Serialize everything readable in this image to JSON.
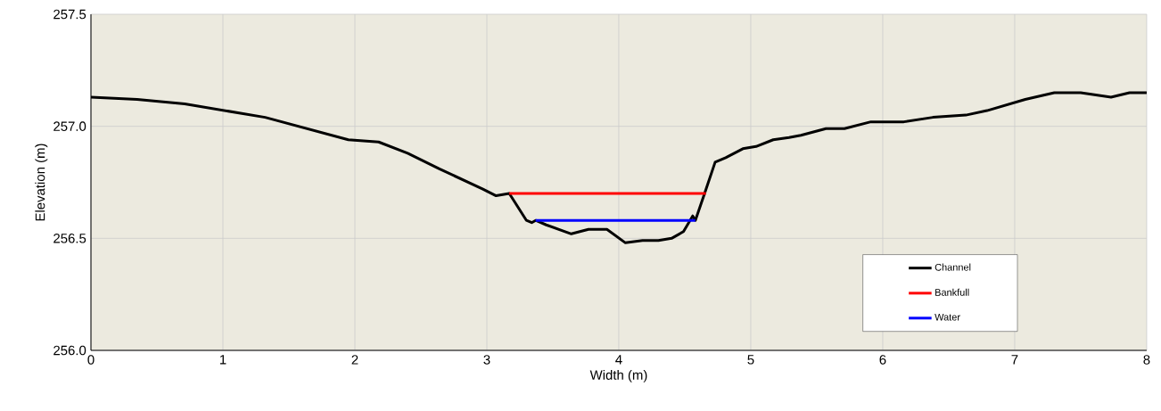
{
  "chart_data": {
    "type": "line",
    "xlabel": "Width (m)",
    "ylabel": "Elevation (m)",
    "xlim": [
      0,
      8
    ],
    "ylim": [
      256.0,
      257.5
    ],
    "xticks": [
      0,
      1,
      2,
      3,
      4,
      5,
      6,
      7,
      8
    ],
    "yticks": [
      {
        "value": 256.0,
        "label": "256.0"
      },
      {
        "value": 256.5,
        "label": "256.5"
      },
      {
        "value": 257.0,
        "label": "257.0"
      },
      {
        "value": 257.5,
        "label": "257.5"
      }
    ],
    "grid": true,
    "legend": "bottom right",
    "series": [
      {
        "name": "Channel",
        "color": "#000000",
        "x": [
          0,
          0.35,
          0.71,
          1.32,
          1.95,
          2.18,
          2.4,
          2.64,
          2.97,
          3.07,
          3.17,
          3.3,
          3.34,
          3.37,
          3.45,
          3.64,
          3.77,
          3.91,
          4.05,
          4.18,
          4.3,
          4.4,
          4.49,
          4.56,
          4.58,
          4.65,
          4.73,
          4.81,
          4.94,
          5.04,
          5.17,
          5.29,
          5.38,
          5.57,
          5.71,
          5.91,
          6.16,
          6.38,
          6.63,
          6.79,
          7.08,
          7.3,
          7.5,
          7.73,
          7.87,
          8
        ],
        "values": [
          257.13,
          257.12,
          257.1,
          257.04,
          256.94,
          256.93,
          256.88,
          256.81,
          256.72,
          256.69,
          256.7,
          256.58,
          256.57,
          256.58,
          256.56,
          256.52,
          256.54,
          256.54,
          256.48,
          256.49,
          256.49,
          256.5,
          256.53,
          256.6,
          256.58,
          256.7,
          256.84,
          256.86,
          256.9,
          256.91,
          256.94,
          256.95,
          256.96,
          256.99,
          256.99,
          257.02,
          257.02,
          257.04,
          257.05,
          257.07,
          257.12,
          257.15,
          257.15,
          257.13,
          257.15,
          257.15
        ]
      },
      {
        "name": "Bankfull",
        "color": "#ff0000",
        "x": [
          3.17,
          4.66
        ],
        "values": [
          256.7,
          256.7
        ]
      },
      {
        "name": "Water",
        "color": "#0000ff",
        "x": [
          3.37,
          4.58
        ],
        "values": [
          256.58,
          256.58
        ]
      }
    ]
  }
}
